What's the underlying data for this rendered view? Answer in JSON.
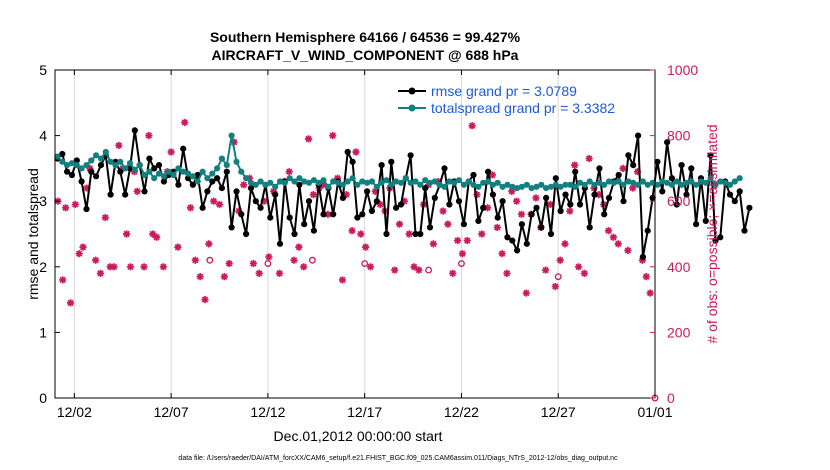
{
  "colors": {
    "rmse": "#000000",
    "spread": "#138080",
    "obs": "#cc1a5e",
    "legend_text": "#1a5cd8",
    "axis": "#000000",
    "grid": "#d9d9d9"
  },
  "chart_data": {
    "type": "line",
    "title_line1": "Southern Hemisphere 64166 / 64536 = 99.427%",
    "title_line2": "AIRCRAFT_V_WIND_COMPONENT @ 688 hPa",
    "xlabel": "Dec.01,2012 00:00:00 start",
    "ylabel_left": "rmse and totalspread",
    "ylabel_right": "# of obs: o=possible; ×=assimilated",
    "footnote": "data file: /Users/raeder/DAI/ATM_forcXX/CAM6_setup/f.e21.FHIST_BGC.f09_025.CAM6assim.011/Diags_NTrS_2012-12/obs_diag_output.nc",
    "xlim": [
      0.5,
      31.5
    ],
    "ylim_left": [
      0,
      5
    ],
    "ylim_right": [
      0,
      1000
    ],
    "x_ticks": [
      1.5,
      6.5,
      11.5,
      16.5,
      21.5,
      26.5,
      31.5
    ],
    "x_tick_labels": [
      "12/02",
      "12/07",
      "12/12",
      "12/17",
      "12/22",
      "12/27",
      "01/01"
    ],
    "y_ticks_left": [
      0,
      1,
      2,
      3,
      4,
      5
    ],
    "y_tick_labels_left": [
      "0",
      "1",
      "2",
      "3",
      "4",
      "5"
    ],
    "y_ticks_right": [
      0,
      200,
      400,
      600,
      800,
      1000
    ],
    "y_tick_labels_right": [
      "0",
      "200",
      "400",
      "600",
      "800",
      "1000"
    ],
    "x_start": 0.625,
    "x_step": 0.25,
    "series": [
      {
        "name": "rmse grand pr = 3.0789",
        "values": [
          3.65,
          3.72,
          3.45,
          3.4,
          3.62,
          3.3,
          2.88,
          3.45,
          3.38,
          3.55,
          3.7,
          3.1,
          3.6,
          3.45,
          3.1,
          3.5,
          4.08,
          3.55,
          3.15,
          3.65,
          3.5,
          3.55,
          3.3,
          3.4,
          3.45,
          3.25,
          3.8,
          3.35,
          3.25,
          3.4,
          2.9,
          3.15,
          3.3,
          3.35,
          3.2,
          3.45,
          2.6,
          3.15,
          2.8,
          2.5,
          3.2,
          3.0,
          2.9,
          3.25,
          2.75,
          3.1,
          2.35,
          3.3,
          2.75,
          2.5,
          3.25,
          2.65,
          3.0,
          2.55,
          3.25,
          2.8,
          3.2,
          2.8,
          3.3,
          3.05,
          3.75,
          3.6,
          2.75,
          2.8,
          3.15,
          2.85,
          3.0,
          3.55,
          2.5,
          3.6,
          2.9,
          2.95,
          3.35,
          3.7,
          2.5,
          2.5,
          3.2,
          2.6,
          3.05,
          3.25,
          3.5,
          2.95,
          3.3,
          3.0,
          2.65,
          3.3,
          3.4,
          2.7,
          2.9,
          3.45,
          3.1,
          2.75,
          3.0,
          2.45,
          2.4,
          2.25,
          2.65,
          2.35,
          2.8,
          2.9,
          2.6,
          3.05,
          2.5,
          3.35,
          2.85,
          3.1,
          2.95,
          3.45,
          2.95,
          3.2,
          2.6,
          3.1,
          3.5,
          2.8,
          3.05,
          3.3,
          3.4,
          3.0,
          3.7,
          3.55,
          4.0,
          2.15,
          2.55,
          3.05,
          3.6,
          3.15,
          3.9,
          3.35,
          2.95,
          3.55,
          3.1,
          3.5,
          2.65,
          3.35,
          2.7,
          3.7,
          2.4,
          2.45,
          3.3,
          3.1,
          3.0,
          3.15,
          2.55,
          2.9
        ]
      },
      {
        "name": "totalspread grand pr = 3.3382",
        "values": [
          3.68,
          3.6,
          3.55,
          3.58,
          3.55,
          3.5,
          3.55,
          3.62,
          3.7,
          3.65,
          3.75,
          3.6,
          3.55,
          3.6,
          3.5,
          3.58,
          3.48,
          3.55,
          3.4,
          3.45,
          3.35,
          3.42,
          3.38,
          3.45,
          3.4,
          3.5,
          3.45,
          3.42,
          3.38,
          3.3,
          3.45,
          3.35,
          3.42,
          3.5,
          3.65,
          3.55,
          4.0,
          3.6,
          3.45,
          3.35,
          3.28,
          3.25,
          3.3,
          3.25,
          3.28,
          3.22,
          3.3,
          3.28,
          3.35,
          3.3,
          3.35,
          3.3,
          3.28,
          3.32,
          3.28,
          3.32,
          3.22,
          3.3,
          3.28,
          3.25,
          3.3,
          3.35,
          3.25,
          3.3,
          3.28,
          3.3,
          3.22,
          3.28,
          3.32,
          3.25,
          3.3,
          3.28,
          3.35,
          3.28,
          3.3,
          3.25,
          3.32,
          3.28,
          3.3,
          3.25,
          3.22,
          3.3,
          3.28,
          3.32,
          3.25,
          3.3,
          3.25,
          3.22,
          3.28,
          3.3,
          3.25,
          3.28,
          3.22,
          3.25,
          3.22,
          3.2,
          3.22,
          3.25,
          3.2,
          3.22,
          3.25,
          3.2,
          3.22,
          3.25,
          3.22,
          3.25,
          3.25,
          3.22,
          3.28,
          3.25,
          3.3,
          3.25,
          3.28,
          3.25,
          3.3,
          3.28,
          3.3,
          3.25,
          3.3,
          3.28,
          3.25,
          3.3,
          3.25,
          3.28,
          3.25,
          3.3,
          3.28,
          3.25,
          3.3,
          3.25,
          3.28,
          3.3,
          3.25,
          3.3,
          3.28,
          3.35,
          3.25,
          3.3,
          3.28,
          3.25,
          3.3,
          3.35
        ]
      }
    ],
    "obs_x": [
      0.65,
      0.9,
      1.05,
      1.3,
      1.55,
      1.75,
      1.95,
      2.15,
      2.3,
      2.6,
      2.85,
      3.1,
      3.35,
      3.55,
      3.8,
      4.0,
      4.2,
      4.4,
      4.6,
      4.75,
      5.1,
      5.35,
      5.55,
      5.75,
      6.1,
      6.3,
      6.5,
      6.85,
      7.2,
      7.5,
      7.75,
      8.0,
      8.25,
      8.45,
      8.7,
      9.0,
      9.25,
      9.5,
      9.75,
      10.0,
      10.25,
      10.55,
      10.75,
      11.05,
      11.3,
      11.55,
      11.8,
      12.1,
      12.35,
      12.6,
      12.85,
      13.1,
      13.35,
      13.6,
      13.85,
      14.15,
      14.35,
      14.6,
      14.85,
      15.1,
      15.35,
      15.55,
      15.85,
      16.05,
      16.3,
      16.55,
      16.8,
      17.05,
      17.3,
      17.55,
      17.8,
      18.05,
      18.3,
      18.55,
      18.8,
      19.05,
      19.3,
      19.55,
      19.8,
      20.05,
      20.3,
      20.55,
      20.8,
      21.05,
      21.3,
      21.55,
      21.8,
      22.05,
      22.3,
      22.55,
      22.85,
      23.1,
      23.35,
      23.6,
      23.85,
      24.1,
      24.35,
      24.6,
      24.85,
      25.1,
      25.35,
      25.6,
      25.85,
      26.1,
      26.35,
      26.6,
      26.85,
      27.1,
      27.35,
      27.55,
      27.85,
      28.1,
      28.35,
      28.6,
      28.85,
      29.1,
      29.35,
      29.6,
      29.85,
      30.1,
      30.35,
      30.6,
      30.85,
      31.05,
      31.25
    ],
    "obs_values": [
      600,
      360,
      580,
      290,
      590,
      440,
      460,
      640,
      700,
      420,
      380,
      550,
      400,
      400,
      770,
      700,
      500,
      400,
      690,
      630,
      400,
      800,
      500,
      490,
      400,
      690,
      750,
      460,
      840,
      580,
      420,
      370,
      300,
      470,
      600,
      590,
      370,
      410,
      780,
      570,
      650,
      670,
      410,
      380,
      600,
      430,
      630,
      380,
      660,
      690,
      420,
      460,
      400,
      790,
      620,
      640,
      650,
      560,
      800,
      670,
      360,
      620,
      510,
      750,
      500,
      460,
      400,
      630,
      590,
      570,
      640,
      390,
      530,
      600,
      500,
      400,
      390,
      590,
      650,
      470,
      660,
      570,
      530,
      380,
      480,
      440,
      480,
      830,
      620,
      500,
      580,
      680,
      520,
      440,
      380,
      630,
      600,
      560,
      320,
      560,
      610,
      520,
      390,
      590,
      340,
      420,
      470,
      570,
      710,
      400,
      380,
      730,
      640,
      620,
      590,
      510,
      490,
      470,
      700,
      450,
      640,
      690,
      420,
      370,
      320
    ],
    "possible_x": [
      8.5,
      11.5,
      13.8,
      16.5,
      19.8,
      21.5,
      26.5,
      31.5
    ],
    "possible_values": [
      420,
      410,
      420,
      410,
      390,
      410,
      370,
      0
    ]
  }
}
